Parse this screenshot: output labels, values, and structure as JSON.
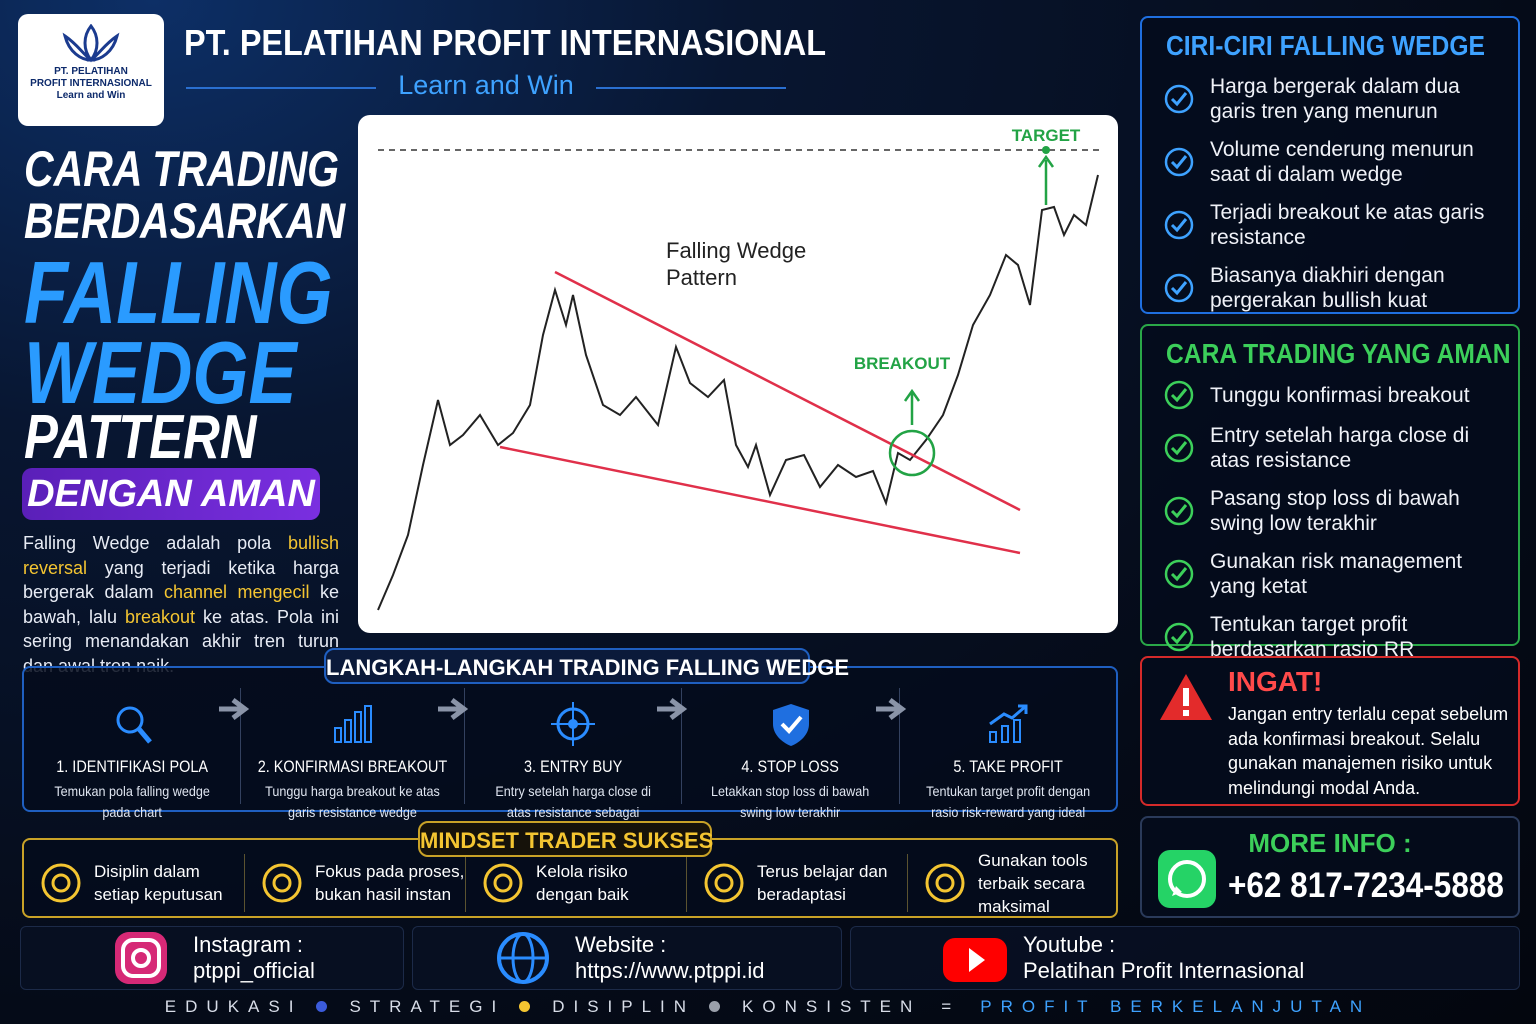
{
  "header": {
    "logo_lines": [
      "PT. PELATIHAN",
      "PROFIT INTERNASIONAL",
      "Learn and Win"
    ],
    "company": "PT. PELATIHAN PROFIT INTERNASIONAL",
    "tagline": "Learn and Win"
  },
  "title": {
    "lines": [
      "CARA TRADING",
      "BERDASARKAN"
    ],
    "highlight_lines": [
      "FALLING",
      "WEDGE"
    ],
    "pattern": "PATTERN",
    "badge": "DENGAN AMAN"
  },
  "intro": [
    {
      "text": "Falling Wedge adalah pola",
      "highlight": false
    },
    {
      "text": "bullish reversal",
      "highlight": true
    },
    {
      "text": "yang terjadi ketika harga bergerak dalam",
      "highlight": false
    },
    {
      "text": "channel mengecil",
      "highlight": true
    },
    {
      "text": "ke bawah, lalu",
      "highlight": false
    },
    {
      "text": "breakout",
      "highlight": true
    },
    {
      "text": "ke atas. Pola ini sering menandakan akhir tren turun dan awal tren naik.",
      "highlight": false
    }
  ],
  "chart": {
    "title": "Falling Wedge Pattern",
    "breakout": "BREAKOUT",
    "target": "TARGET"
  },
  "features": {
    "title": "CIRI-CIRI FALLING WEDGE",
    "items": [
      "Harga bergerak dalam dua garis tren yang menurun",
      "Volume cenderung menurun saat di dalam wedge",
      "Terjadi breakout ke atas garis resistance",
      "Biasanya diakhiri dengan pergerakan bullish kuat"
    ]
  },
  "safe_trading": {
    "title": "CARA TRADING YANG AMAN",
    "items": [
      "Tunggu konfirmasi breakout",
      "Entry setelah harga close di atas resistance",
      "Pasang stop loss di bawah swing low terakhir",
      "Gunakan risk management yang ketat",
      "Tentukan target profit berdasarkan rasio RR"
    ]
  },
  "warning": {
    "title": "INGAT!",
    "text": "Jangan entry terlalu cepat sebelum ada konfirmasi breakout. Selalu gunakan manajemen risiko untuk melindungi modal Anda."
  },
  "contact": {
    "label": "MORE INFO :",
    "phone": "+62 817-7234-5888"
  },
  "steps": {
    "title": "LANGKAH-LANGKAH TRADING FALLING WEDGE",
    "items": [
      {
        "title": "1. IDENTIFIKASI POLA",
        "text": "Temukan pola falling wedge pada chart"
      },
      {
        "title": "2. KONFIRMASI BREAKOUT",
        "text": "Tunggu harga breakout ke atas garis resistance wedge"
      },
      {
        "title": "3. ENTRY BUY",
        "text": "Entry setelah harga close di atas resistance sebagai konfirmasi"
      },
      {
        "title": "4. STOP LOSS",
        "text": "Letakkan stop loss di bawah swing low terakhir"
      },
      {
        "title": "5. TAKE PROFIT",
        "text": "Tentukan target profit dengan rasio risk-reward yang ideal"
      }
    ]
  },
  "mindset": {
    "title": "MINDSET TRADER SUKSES",
    "items": [
      "Disiplin dalam setiap keputusan",
      "Fokus pada proses, bukan hasil instan",
      "Kelola risiko dengan baik",
      "Terus belajar dan beradaptasi",
      "Gunakan tools terbaik secara maksimal"
    ]
  },
  "social": [
    {
      "label": "Instagram :",
      "value": "ptppi_official"
    },
    {
      "label": "Website :",
      "value": "https://www.ptppi.id"
    },
    {
      "label": "Youtube :",
      "value": "Pelatihan Profit Internasional"
    }
  ],
  "footer": {
    "words": [
      "EDUKASI",
      "STRATEGI",
      "DISIPLIN",
      "KONSISTEN"
    ],
    "equals": "=",
    "result": "PROFIT BERKELANJUTAN"
  }
}
